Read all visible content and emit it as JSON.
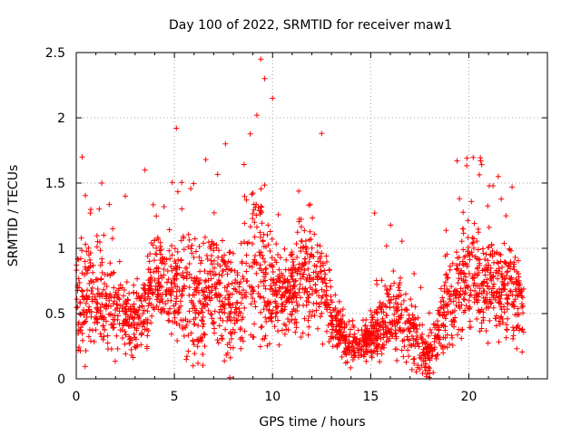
{
  "chart_data": {
    "type": "scatter",
    "title": "Day 100 of 2022, SRMTID for receiver maw1",
    "xlabel": "GPS time / hours",
    "ylabel": "SRMTID / TECUs",
    "xlim": [
      0,
      24
    ],
    "ylim": [
      0,
      2.5
    ],
    "xticks": [
      0,
      5,
      10,
      15,
      20
    ],
    "xtick_labels": [
      "0",
      "5",
      "10",
      "15",
      "20"
    ],
    "yticks": [
      0,
      0.5,
      1,
      1.5,
      2,
      2.5
    ],
    "ytick_labels": [
      "0",
      "0.5",
      "1",
      "1.5",
      "2",
      "2.5"
    ],
    "grid": true,
    "marker": "plus",
    "color": "#ff0000",
    "series": [
      {
        "name": "SRMTID",
        "envelope": {
          "description": "Approximate per-hour central value and spread of the dense point cloud",
          "hours": [
            0,
            1,
            2,
            3,
            4,
            5,
            6,
            7,
            8,
            9,
            10,
            11,
            12,
            13,
            14,
            15,
            16,
            17,
            18,
            19,
            20,
            21,
            22,
            22.8
          ],
          "center": [
            0.6,
            0.6,
            0.55,
            0.4,
            0.8,
            0.7,
            0.55,
            0.75,
            0.5,
            1.0,
            0.65,
            0.7,
            0.85,
            0.45,
            0.25,
            0.3,
            0.5,
            0.35,
            0.15,
            0.6,
            0.85,
            0.75,
            0.65,
            0.6
          ],
          "spread": [
            0.35,
            0.35,
            0.3,
            0.3,
            0.35,
            0.35,
            0.4,
            0.4,
            0.35,
            0.6,
            0.35,
            0.3,
            0.45,
            0.2,
            0.12,
            0.15,
            0.3,
            0.25,
            0.15,
            0.35,
            0.4,
            0.35,
            0.35,
            0.3
          ]
        },
        "peaks": [
          {
            "x": 0.3,
            "y": 1.7
          },
          {
            "x": 1.3,
            "y": 1.5
          },
          {
            "x": 2.5,
            "y": 1.4
          },
          {
            "x": 3.5,
            "y": 1.6
          },
          {
            "x": 5.1,
            "y": 1.92
          },
          {
            "x": 6.6,
            "y": 1.68
          },
          {
            "x": 7.6,
            "y": 1.8
          },
          {
            "x": 9.2,
            "y": 2.02
          },
          {
            "x": 9.4,
            "y": 2.45
          },
          {
            "x": 9.6,
            "y": 2.3
          },
          {
            "x": 10.0,
            "y": 2.15
          },
          {
            "x": 12.5,
            "y": 1.88
          },
          {
            "x": 15.2,
            "y": 1.27
          },
          {
            "x": 19.4,
            "y": 1.67
          },
          {
            "x": 19.9,
            "y": 1.69
          },
          {
            "x": 20.6,
            "y": 1.67
          },
          {
            "x": 21.5,
            "y": 1.55
          },
          {
            "x": 22.2,
            "y": 1.47
          }
        ],
        "point_count": 2400,
        "x_range": [
          0,
          22.8
        ]
      }
    ]
  }
}
